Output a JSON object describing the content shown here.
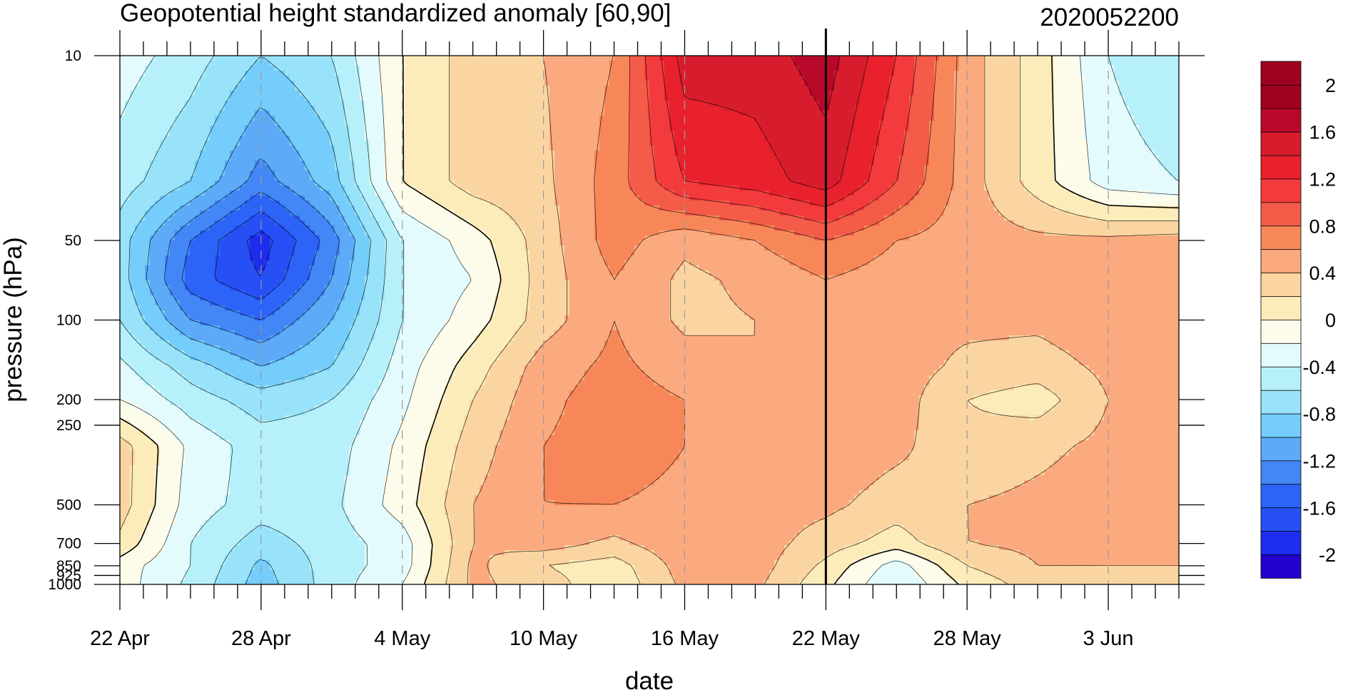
{
  "title_left": "Geopotential height standardized anomaly [60,90]",
  "title_right": "2020052200",
  "chart_data": {
    "type": "heatmap",
    "title": "Geopotential height standardized anomaly [60,90]",
    "date_stamp": "2020052200",
    "xlabel": "date",
    "ylabel": "pressure (hPa)",
    "x_range": [
      "2020-04-22",
      "2020-06-06"
    ],
    "x_tick_labels": [
      "22 Apr",
      "28 Apr",
      "4 May",
      "10 May",
      "16 May",
      "22 May",
      "28 May",
      "3 Jun"
    ],
    "x_tick_days": [
      0,
      6,
      12,
      18,
      24,
      30,
      36,
      42
    ],
    "x_total_days": 45,
    "y_scale": "log",
    "y_range": [
      1000,
      10
    ],
    "y_ticks": [
      10,
      50,
      100,
      200,
      250,
      500,
      700,
      850,
      925,
      1000
    ],
    "y_tick_labels": [
      "10",
      "50",
      "100",
      "200",
      "250",
      "500",
      "700",
      "850",
      "925",
      "1000"
    ],
    "grid": "dashed vertical lines at labeled dates",
    "marker_line_day": 30,
    "colorbar": {
      "levels": [
        -2.2,
        -2.0,
        -1.8,
        -1.6,
        -1.4,
        -1.2,
        -1.0,
        -0.8,
        -0.6,
        -0.4,
        -0.2,
        0.0,
        0.2,
        0.4,
        0.6,
        0.8,
        1.0,
        1.2,
        1.4,
        1.6,
        1.8,
        2.0,
        2.2
      ],
      "labels": [
        "2",
        "1.6",
        "1.2",
        "0.8",
        "0.4",
        "0",
        "-0.4",
        "-0.8",
        "-1.2",
        "-1.6",
        "-2"
      ],
      "label_values": [
        2.0,
        1.6,
        1.2,
        0.8,
        0.4,
        0.0,
        -0.4,
        -0.8,
        -1.2,
        -1.6,
        -2.0
      ],
      "colors": [
        "#2400cc",
        "#1e2ced",
        "#2650f5",
        "#2c64f8",
        "#4287f5",
        "#5caaf8",
        "#74cdfa",
        "#98e3f9",
        "#b6f1fb",
        "#e4fbfd",
        "#fdfcea",
        "#fcecba",
        "#fbd5a1",
        "#fba97e",
        "#f78758",
        "#f55b49",
        "#f33a3d",
        "#e8212d",
        "#d71d2d",
        "#b9092a",
        "#a00020",
        "#a00020"
      ]
    },
    "nodes_pressure": [
      10,
      30,
      50,
      70,
      100,
      150,
      200,
      300,
      500,
      700,
      850,
      1000
    ],
    "nodes_day": [
      0,
      3,
      6,
      9,
      12,
      15,
      18,
      21,
      24,
      27,
      30,
      33,
      36,
      39,
      42,
      45
    ],
    "values": [
      [
        -0.3,
        -0.5,
        -0.8,
        -0.6,
        0.0,
        0.3,
        0.4,
        0.6,
        1.5,
        1.5,
        1.7,
        1.2,
        0.5,
        0.1,
        -0.4,
        -0.6
      ],
      [
        -0.5,
        -0.8,
        -1.3,
        -0.9,
        0.0,
        0.3,
        0.35,
        0.7,
        1.2,
        1.3,
        1.5,
        1.0,
        0.5,
        0.1,
        -0.3,
        -0.4
      ],
      [
        -0.7,
        -1.4,
        -1.9,
        -1.3,
        -0.4,
        -0.1,
        0.3,
        0.7,
        0.45,
        0.6,
        0.8,
        0.6,
        0.5,
        0.45,
        0.45,
        0.5
      ],
      [
        -0.7,
        -1.5,
        -1.8,
        -1.2,
        -0.4,
        -0.2,
        0.3,
        0.6,
        0.35,
        0.45,
        0.6,
        0.5,
        0.45,
        0.45,
        0.55,
        0.6
      ],
      [
        -0.6,
        -1.2,
        -1.4,
        -1.0,
        -0.4,
        -0.1,
        0.3,
        0.6,
        0.35,
        0.4,
        0.55,
        0.45,
        0.45,
        0.45,
        0.55,
        0.55
      ],
      [
        -0.35,
        -0.7,
        -1.0,
        -0.8,
        -0.3,
        0.1,
        0.5,
        0.65,
        0.5,
        0.4,
        0.55,
        0.5,
        0.35,
        0.3,
        0.45,
        0.5
      ],
      [
        -0.2,
        -0.5,
        -0.7,
        -0.6,
        -0.25,
        0.2,
        0.55,
        0.7,
        0.6,
        0.45,
        0.55,
        0.5,
        0.2,
        0.1,
        0.4,
        0.5
      ],
      [
        0.3,
        -0.25,
        -0.5,
        -0.5,
        -0.15,
        0.3,
        0.6,
        0.7,
        0.6,
        0.5,
        0.55,
        0.45,
        0.25,
        0.35,
        0.45,
        0.55
      ],
      [
        0.3,
        -0.3,
        -0.5,
        -0.45,
        -0.1,
        0.4,
        0.6,
        0.6,
        0.55,
        0.5,
        0.45,
        0.3,
        0.4,
        0.45,
        0.5,
        0.55
      ],
      [
        0.15,
        -0.4,
        -0.7,
        -0.5,
        -0.3,
        0.4,
        0.5,
        0.35,
        0.55,
        0.5,
        0.3,
        0.1,
        0.4,
        0.45,
        0.45,
        0.45
      ],
      [
        -0.1,
        -0.4,
        -0.85,
        -0.5,
        -0.3,
        0.45,
        0.2,
        0.1,
        0.5,
        0.5,
        0.15,
        -0.3,
        0.2,
        0.4,
        0.4,
        0.4
      ],
      [
        -0.1,
        -0.45,
        -0.9,
        -0.5,
        -0.2,
        0.45,
        0.3,
        0.05,
        0.45,
        0.45,
        0.05,
        -0.4,
        0.05,
        0.3,
        0.35,
        0.35
      ]
    ]
  }
}
